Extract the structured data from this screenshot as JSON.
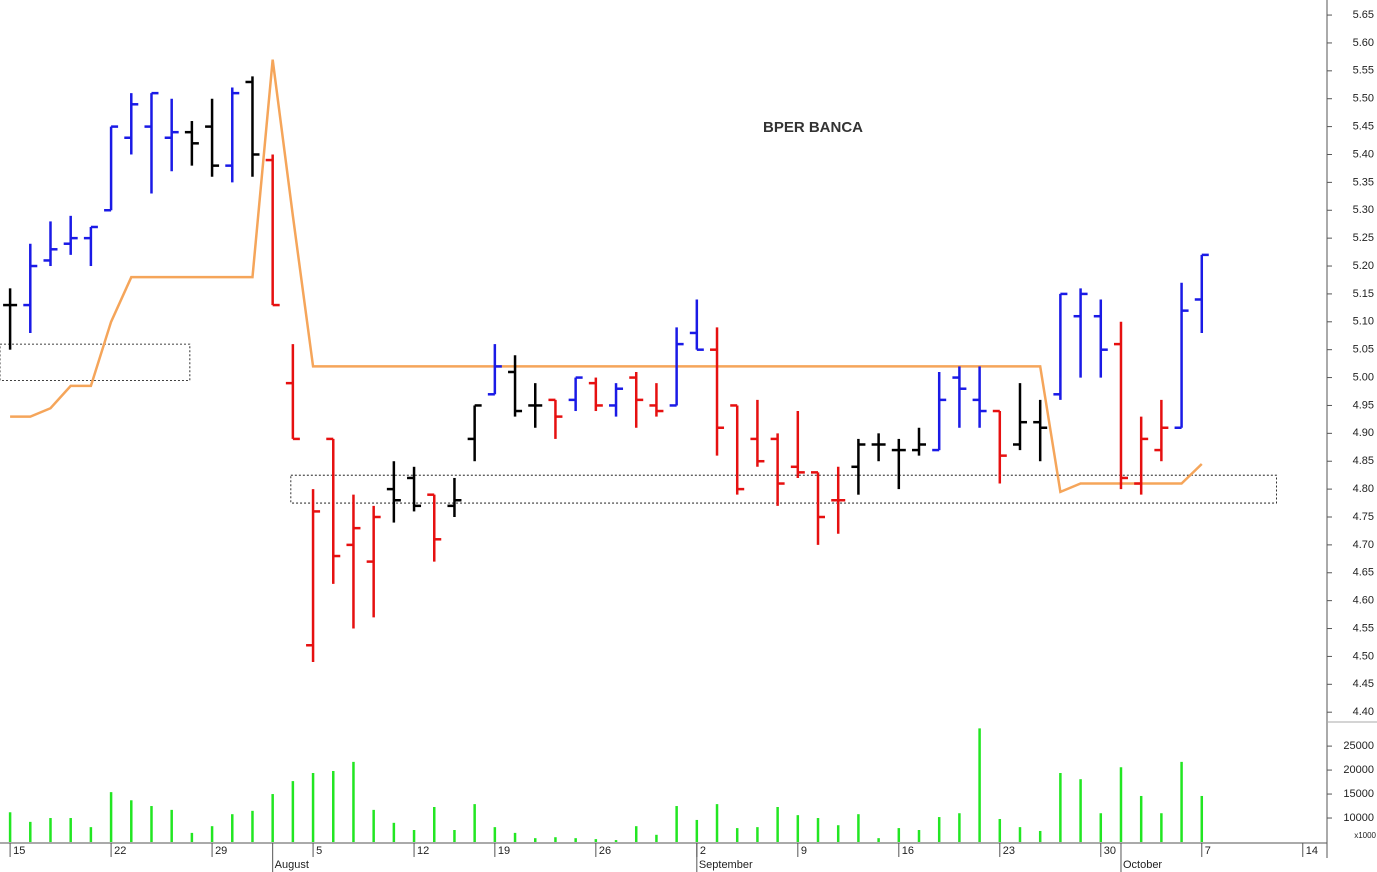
{
  "chart_data": {
    "type": "ohlc",
    "title": "BPER BANCA",
    "xlim": [
      -0.5,
      65.2
    ],
    "xticks": [
      {
        "value": 0,
        "label": "15"
      },
      {
        "value": 5,
        "label": "22"
      },
      {
        "value": 10,
        "label": "29"
      },
      {
        "value": 15,
        "label": "5"
      },
      {
        "value": 20,
        "label": "12"
      },
      {
        "value": 24,
        "label": "19"
      },
      {
        "value": 29,
        "label": "26"
      },
      {
        "value": 34,
        "label": "2"
      },
      {
        "value": 39,
        "label": "9"
      },
      {
        "value": 44,
        "label": "16"
      },
      {
        "value": 49,
        "label": "23"
      },
      {
        "value": 54,
        "label": "30"
      },
      {
        "value": 59,
        "label": "7"
      },
      {
        "value": 64,
        "label": "14"
      }
    ],
    "months": [
      {
        "value": 13,
        "label": "August"
      },
      {
        "value": 34,
        "label": "September"
      },
      {
        "value": 55,
        "label": "October"
      }
    ],
    "ylim": [
      4.386,
      5.677
    ],
    "yticks": [
      {
        "value": 4.4,
        "label": "4.40"
      },
      {
        "value": 4.45,
        "label": "4.45"
      },
      {
        "value": 4.5,
        "label": "4.50"
      },
      {
        "value": 4.55,
        "label": "4.55"
      },
      {
        "value": 4.6,
        "label": "4.60"
      },
      {
        "value": 4.65,
        "label": "4.65"
      },
      {
        "value": 4.7,
        "label": "4.70"
      },
      {
        "value": 4.75,
        "label": "4.75"
      },
      {
        "value": 4.8,
        "label": "4.80"
      },
      {
        "value": 4.85,
        "label": "4.85"
      },
      {
        "value": 4.9,
        "label": "4.90"
      },
      {
        "value": 4.95,
        "label": "4.95"
      },
      {
        "value": 5.0,
        "label": "5.00"
      },
      {
        "value": 5.05,
        "label": "5.05"
      },
      {
        "value": 5.1,
        "label": "5.10"
      },
      {
        "value": 5.15,
        "label": "5.15"
      },
      {
        "value": 5.2,
        "label": "5.20"
      },
      {
        "value": 5.25,
        "label": "5.25"
      },
      {
        "value": 5.3,
        "label": "5.30"
      },
      {
        "value": 5.35,
        "label": "5.35"
      },
      {
        "value": 5.4,
        "label": "5.40"
      },
      {
        "value": 5.45,
        "label": "5.45"
      },
      {
        "value": 5.5,
        "label": "5.50"
      },
      {
        "value": 5.55,
        "label": "5.55"
      },
      {
        "value": 5.6,
        "label": "5.60"
      },
      {
        "value": 5.65,
        "label": "5.65"
      }
    ],
    "open": [
      5.13,
      5.13,
      5.21,
      5.24,
      5.25,
      5.3,
      5.43,
      5.45,
      5.43,
      5.44,
      5.45,
      5.38,
      5.53,
      5.39,
      4.99,
      4.52,
      4.89,
      4.7,
      4.67,
      4.8,
      4.82,
      4.79,
      4.77,
      4.89,
      4.97,
      5.01,
      4.95,
      4.96,
      4.96,
      4.99,
      4.95,
      5.0,
      4.95,
      4.95,
      5.08,
      5.05,
      4.95,
      4.89,
      4.89,
      4.84,
      4.83,
      4.78,
      4.84,
      4.88,
      4.87,
      4.87,
      4.87,
      5.0,
      4.96,
      4.94,
      4.88,
      4.92,
      4.97,
      5.11,
      5.11,
      5.06,
      4.81,
      4.87,
      4.91,
      5.14
    ],
    "high": [
      5.16,
      5.24,
      5.28,
      5.29,
      5.27,
      5.45,
      5.51,
      5.51,
      5.5,
      5.46,
      5.5,
      5.52,
      5.54,
      5.4,
      5.06,
      4.8,
      4.89,
      4.79,
      4.77,
      4.85,
      4.84,
      4.79,
      4.82,
      4.95,
      5.06,
      5.04,
      4.99,
      4.96,
      5.0,
      5.0,
      4.99,
      5.01,
      4.99,
      5.09,
      5.14,
      5.09,
      4.95,
      4.96,
      4.9,
      4.94,
      4.83,
      4.84,
      4.89,
      4.9,
      4.89,
      4.91,
      5.01,
      5.02,
      5.02,
      4.94,
      4.99,
      4.96,
      5.15,
      5.16,
      5.14,
      5.1,
      4.93,
      4.96,
      5.17,
      5.22
    ],
    "low": [
      5.05,
      5.08,
      5.2,
      5.22,
      5.2,
      5.3,
      5.4,
      5.33,
      5.37,
      5.38,
      5.36,
      5.35,
      5.36,
      5.13,
      4.89,
      4.49,
      4.63,
      4.55,
      4.57,
      4.74,
      4.76,
      4.67,
      4.75,
      4.85,
      4.97,
      4.93,
      4.91,
      4.89,
      4.94,
      4.94,
      4.93,
      4.91,
      4.93,
      4.95,
      5.05,
      4.86,
      4.79,
      4.84,
      4.77,
      4.82,
      4.7,
      4.72,
      4.79,
      4.85,
      4.8,
      4.86,
      4.87,
      4.91,
      4.91,
      4.81,
      4.87,
      4.85,
      4.96,
      5.0,
      5.0,
      4.8,
      4.79,
      4.85,
      4.91,
      5.08
    ],
    "close": [
      5.13,
      5.2,
      5.23,
      5.25,
      5.27,
      5.45,
      5.49,
      5.51,
      5.44,
      5.42,
      5.38,
      5.51,
      5.4,
      5.13,
      4.89,
      4.76,
      4.68,
      4.73,
      4.75,
      4.78,
      4.77,
      4.71,
      4.78,
      4.95,
      5.02,
      4.94,
      4.95,
      4.93,
      5.0,
      4.95,
      4.98,
      4.96,
      4.94,
      5.06,
      5.05,
      4.91,
      4.8,
      4.85,
      4.81,
      4.83,
      4.75,
      4.78,
      4.88,
      4.88,
      4.87,
      4.88,
      4.96,
      4.98,
      4.94,
      4.86,
      4.92,
      4.91,
      5.15,
      5.15,
      5.05,
      4.82,
      4.89,
      4.91,
      5.12,
      5.22
    ],
    "colors": [
      "#000000",
      "#1a1ae6",
      "#1a1ae6",
      "#1a1ae6",
      "#1a1ae6",
      "#1a1ae6",
      "#1a1ae6",
      "#1a1ae6",
      "#1a1ae6",
      "#000000",
      "#000000",
      "#1a1ae6",
      "#000000",
      "#e61010",
      "#e61010",
      "#e61010",
      "#e61010",
      "#e61010",
      "#e61010",
      "#000000",
      "#000000",
      "#e61010",
      "#000000",
      "#000000",
      "#1a1ae6",
      "#000000",
      "#000000",
      "#e61010",
      "#1a1ae6",
      "#e61010",
      "#1a1ae6",
      "#e61010",
      "#e61010",
      "#1a1ae6",
      "#1a1ae6",
      "#e61010",
      "#e61010",
      "#e61010",
      "#e61010",
      "#e61010",
      "#e61010",
      "#e61010",
      "#000000",
      "#000000",
      "#000000",
      "#000000",
      "#1a1ae6",
      "#1a1ae6",
      "#1a1ae6",
      "#e61010",
      "#000000",
      "#000000",
      "#1a1ae6",
      "#1a1ae6",
      "#1a1ae6",
      "#e61010",
      "#e61010",
      "#e61010",
      "#1a1ae6",
      "#1a1ae6"
    ],
    "line": {
      "color": "#f5a55a",
      "values": [
        4.93,
        4.93,
        4.945,
        4.985,
        4.985,
        5.1,
        5.18,
        5.18,
        5.18,
        5.18,
        5.18,
        5.18,
        5.18,
        5.57,
        5.29,
        5.02,
        5.02,
        5.02,
        5.02,
        5.02,
        5.02,
        5.02,
        5.02,
        5.02,
        5.02,
        5.02,
        5.02,
        5.02,
        5.02,
        5.02,
        5.02,
        5.02,
        5.02,
        5.02,
        5.02,
        5.02,
        5.02,
        5.02,
        5.02,
        5.02,
        5.02,
        5.02,
        5.02,
        5.02,
        5.02,
        5.02,
        5.02,
        5.02,
        5.02,
        5.02,
        5.02,
        5.02,
        4.795,
        4.81,
        4.81,
        4.81,
        4.81,
        4.81,
        4.81,
        4.845
      ]
    },
    "zones": [
      {
        "from": -0.5,
        "to": 8.9,
        "low": 4.995,
        "high": 5.06
      },
      {
        "from": 13.9,
        "to": 62.7,
        "low": 4.775,
        "high": 4.825
      }
    ],
    "volume": {
      "color": "#22e622",
      "unit_label": "x1000",
      "ylim": [
        5000,
        29400
      ],
      "yticks": [
        10000,
        15000,
        20000,
        25000
      ],
      "values": [
        11200,
        9200,
        10000,
        10000,
        8100,
        15400,
        13700,
        12500,
        11700,
        6900,
        8300,
        10800,
        11500,
        15000,
        17700,
        19400,
        19800,
        21700,
        11700,
        9000,
        7500,
        12300,
        7500,
        12900,
        8100,
        6900,
        5800,
        6000,
        5800,
        5600,
        5400,
        8300,
        6500,
        12500,
        9600,
        12900,
        7900,
        8100,
        12300,
        10600,
        10000,
        8500,
        10800,
        5800,
        7900,
        7500,
        10200,
        11000,
        28700,
        9800,
        8100,
        7300,
        19400,
        18100,
        11000,
        20600,
        14600,
        11000,
        21700,
        14600
      ]
    }
  }
}
